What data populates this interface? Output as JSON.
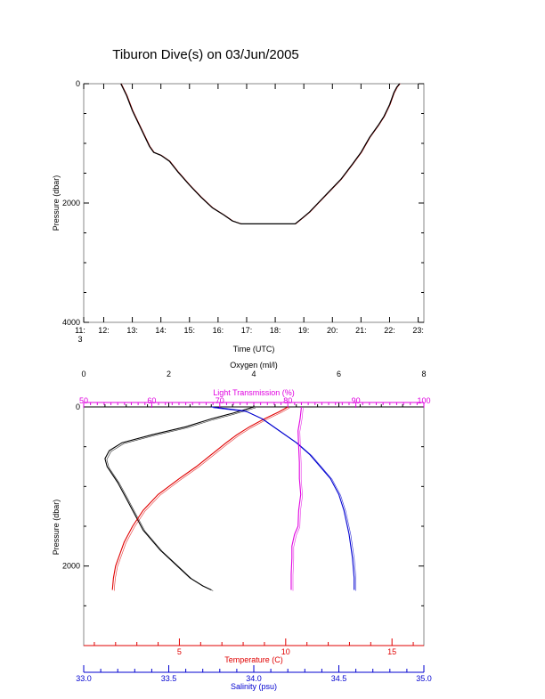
{
  "title": "Tiburon Dive(s) on 03/Jun/2005",
  "colors": {
    "black": "#000000",
    "red": "#e00000",
    "blue": "#0000d0",
    "magenta": "#e000e0"
  },
  "chart_data": [
    {
      "type": "line",
      "title": "Tiburon Dive(s) on 03/Jun/2005",
      "xlabel": "Time (UTC)",
      "ylabel": "Pressure (dbar)",
      "xlim": [
        11.3,
        23.2
      ],
      "ylim": [
        4000,
        0
      ],
      "xticks": [
        "11:\n3",
        "12:",
        "13:",
        "14:",
        "15:",
        "16:",
        "17:",
        "18:",
        "19:",
        "20:",
        "21:",
        "22:",
        "23:"
      ],
      "yticks": [
        "0",
        "2000",
        "4000"
      ],
      "grid": false,
      "series": [
        {
          "color": "#000000",
          "x": [
            12.6,
            12.8,
            13.0,
            13.3,
            13.6,
            13.75,
            14.0,
            14.3,
            14.6,
            15.0,
            15.4,
            15.8,
            16.2,
            16.5,
            16.8,
            17.2,
            17.6,
            18.0,
            18.4,
            18.7,
            18.95,
            19.2,
            19.5,
            19.9,
            20.3,
            20.7,
            21.0,
            21.3,
            21.6,
            21.8,
            22.0,
            22.15,
            22.25,
            22.35
          ],
          "y": [
            0,
            200,
            450,
            750,
            1050,
            1150,
            1200,
            1300,
            1480,
            1700,
            1900,
            2080,
            2200,
            2300,
            2350,
            2350,
            2350,
            2350,
            2350,
            2350,
            2250,
            2150,
            2000,
            1800,
            1600,
            1350,
            1150,
            900,
            700,
            550,
            350,
            150,
            60,
            0
          ]
        }
      ]
    },
    {
      "type": "line",
      "ylabel": "Pressure (dbar)",
      "ylim": [
        3000,
        0
      ],
      "yticks": [
        "0",
        "2000"
      ],
      "grid": false,
      "axes": {
        "oxygen": {
          "label": "Oxygen (ml/l)",
          "range": [
            0,
            8
          ],
          "ticks": [
            "0",
            "2",
            "4",
            "6",
            "8"
          ],
          "color": "#000000"
        },
        "light_transmission": {
          "label": "Light Transmission (%)",
          "range": [
            50,
            100
          ],
          "ticks": [
            "50",
            "60",
            "70",
            "80",
            "90",
            "100"
          ],
          "color": "#e000e0"
        },
        "temperature": {
          "label": "Temperature (C)",
          "range": [
            0.5,
            16.5
          ],
          "ticks": [
            "5",
            "10",
            "15"
          ],
          "color": "#e00000"
        },
        "salinity": {
          "label": "Salinity (psu)",
          "range": [
            33.0,
            35.0
          ],
          "ticks": [
            "33.0",
            "33.5",
            "34.0",
            "34.5",
            "35.0"
          ],
          "color": "#0000d0"
        }
      },
      "series": [
        {
          "axis": "oxygen",
          "color": "#000000",
          "x": [
            4.0,
            3.5,
            3.0,
            2.4,
            1.6,
            0.9,
            0.6,
            0.5,
            0.55,
            0.8,
            1.0,
            1.2,
            1.4,
            1.8,
            2.2,
            2.5,
            2.8,
            3.0
          ],
          "y": [
            0,
            80,
            150,
            250,
            350,
            450,
            550,
            650,
            750,
            950,
            1150,
            1350,
            1550,
            1800,
            2000,
            2150,
            2250,
            2300
          ]
        },
        {
          "axis": "temperature",
          "color": "#e00000",
          "x": [
            10.1,
            9.7,
            9.0,
            8.3,
            7.7,
            7.2,
            6.5,
            5.8,
            5.0,
            4.0,
            3.3,
            2.8,
            2.4,
            2.2,
            2.0,
            1.9,
            1.85
          ],
          "y": [
            0,
            60,
            150,
            250,
            350,
            450,
            600,
            750,
            900,
            1100,
            1300,
            1500,
            1700,
            1850,
            2000,
            2150,
            2300
          ]
        },
        {
          "axis": "salinity",
          "color": "#0000d0",
          "x": [
            33.75,
            33.95,
            34.05,
            34.15,
            34.25,
            34.33,
            34.39,
            34.45,
            34.5,
            34.53,
            34.56,
            34.58,
            34.59,
            34.59
          ],
          "y": [
            0,
            50,
            150,
            300,
            450,
            600,
            750,
            900,
            1100,
            1300,
            1600,
            1900,
            2150,
            2300
          ]
        },
        {
          "axis": "light_transmission",
          "color": "#e000e0",
          "x": [
            82.0,
            81.8,
            81.5,
            81.6,
            81.7,
            81.7,
            81.9,
            81.6,
            81.5,
            81.0,
            80.6,
            80.6,
            80.5,
            80.5
          ],
          "y": [
            0,
            150,
            300,
            500,
            700,
            900,
            1100,
            1300,
            1500,
            1600,
            1750,
            1900,
            2100,
            2300
          ]
        }
      ]
    }
  ]
}
